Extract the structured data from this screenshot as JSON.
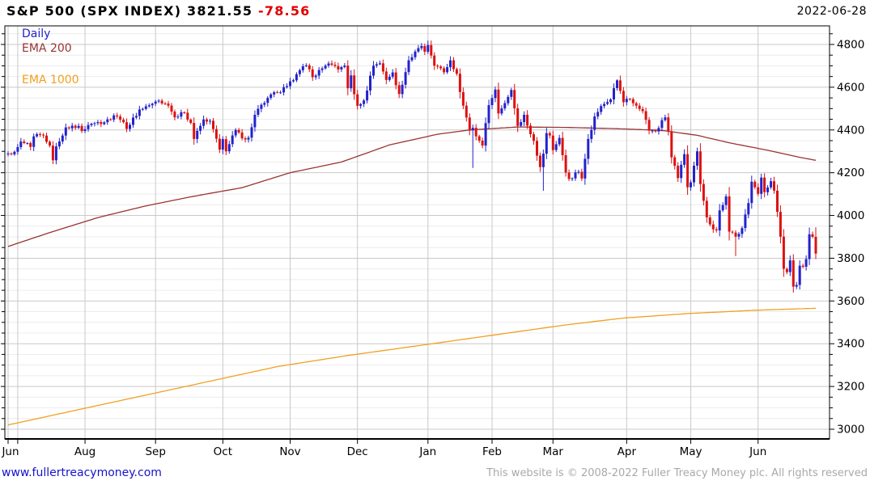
{
  "header": {
    "title_main": "S&P 500 (SPX INDEX) 3821.55",
    "title_change": "-78.56",
    "date": "2022-06-28"
  },
  "legend": [
    {
      "label": "Daily",
      "color": "#2222cc",
      "y": 34
    },
    {
      "label": "EMA 200",
      "color": "#993333",
      "y": 52
    },
    {
      "label": "EMA 1000",
      "color": "#f0a020",
      "y": 91
    }
  ],
  "footer": {
    "link": "www.fullertreacymoney.com",
    "copyright": "This website is © 2008-2022 Fuller Treacy Money plc. All rights reserved"
  },
  "chart_data": {
    "type": "candlestick",
    "title": "S&P 500 (SPX INDEX)",
    "timeframe": "Daily",
    "last_price": 3821.55,
    "change": -78.56,
    "date": "2022-06-28",
    "ylim": [
      2955,
      4885
    ],
    "y_major_ticks": [
      3000,
      3200,
      3400,
      3600,
      3800,
      4000,
      4200,
      4400,
      4600,
      4800
    ],
    "y_minor_step": 50,
    "grid": true,
    "days": 253,
    "plot": {
      "l": 6,
      "t": 32,
      "r": 1025,
      "b": 543
    },
    "months": [
      [
        "Jun",
        0
      ],
      [
        "",
        3
      ],
      [
        "Aug",
        24
      ],
      [
        "Sep",
        46
      ],
      [
        "Oct",
        67
      ],
      [
        "Nov",
        88
      ],
      [
        "Dec",
        109
      ],
      [
        "Jan",
        131
      ],
      [
        "Feb",
        151
      ],
      [
        "Mar",
        170
      ],
      [
        "Apr",
        193
      ],
      [
        "May",
        213
      ],
      [
        "Jun",
        234
      ]
    ],
    "colors": {
      "up": "#2222cc",
      "down": "#dd1111",
      "ema200": "#993333",
      "ema1000": "#f0a020",
      "grid_major": "#c9c9c9",
      "grid_minor": "#ececec",
      "axis": "#000000"
    },
    "close_keyframes": [
      [
        0,
        4290
      ],
      [
        2,
        4298
      ],
      [
        3,
        4320
      ],
      [
        4,
        4346
      ],
      [
        7,
        4321
      ],
      [
        8,
        4370
      ],
      [
        11,
        4374
      ],
      [
        13,
        4327
      ],
      [
        14,
        4258
      ],
      [
        15,
        4323
      ],
      [
        18,
        4412
      ],
      [
        22,
        4419
      ],
      [
        23,
        4395
      ],
      [
        25,
        4423
      ],
      [
        28,
        4437
      ],
      [
        30,
        4436
      ],
      [
        33,
        4468
      ],
      [
        35,
        4448
      ],
      [
        37,
        4405
      ],
      [
        41,
        4496
      ],
      [
        45,
        4523
      ],
      [
        47,
        4537
      ],
      [
        50,
        4514
      ],
      [
        52,
        4459
      ],
      [
        55,
        4481
      ],
      [
        57,
        4433
      ],
      [
        58,
        4358
      ],
      [
        61,
        4449
      ],
      [
        63,
        4443
      ],
      [
        65,
        4359
      ],
      [
        66,
        4308
      ],
      [
        67,
        4357
      ],
      [
        68,
        4300
      ],
      [
        71,
        4400
      ],
      [
        73,
        4361
      ],
      [
        75,
        4364
      ],
      [
        77,
        4471
      ],
      [
        81,
        4550
      ],
      [
        84,
        4575
      ],
      [
        87,
        4605
      ],
      [
        90,
        4661
      ],
      [
        92,
        4698
      ],
      [
        93,
        4702
      ],
      [
        95,
        4647
      ],
      [
        99,
        4701
      ],
      [
        101,
        4705
      ],
      [
        103,
        4683
      ],
      [
        105,
        4701
      ],
      [
        106,
        4595
      ],
      [
        107,
        4655
      ],
      [
        108,
        4567
      ],
      [
        109,
        4513
      ],
      [
        111,
        4538
      ],
      [
        114,
        4701
      ],
      [
        116,
        4712
      ],
      [
        118,
        4634
      ],
      [
        120,
        4669
      ],
      [
        122,
        4568
      ],
      [
        125,
        4726
      ],
      [
        129,
        4793
      ],
      [
        130,
        4766
      ],
      [
        131,
        4797
      ],
      [
        133,
        4701
      ],
      [
        136,
        4670
      ],
      [
        138,
        4726
      ],
      [
        140,
        4663
      ],
      [
        141,
        4577
      ],
      [
        144,
        4398
      ],
      [
        145,
        4410
      ],
      [
        147,
        4350
      ],
      [
        148,
        4327
      ],
      [
        149,
        4432
      ],
      [
        150,
        4516
      ],
      [
        152,
        4589
      ],
      [
        153,
        4477
      ],
      [
        154,
        4501
      ],
      [
        157,
        4587
      ],
      [
        159,
        4419
      ],
      [
        161,
        4471
      ],
      [
        163,
        4380
      ],
      [
        164,
        4349
      ],
      [
        166,
        4226
      ],
      [
        167,
        4289
      ],
      [
        168,
        4385
      ],
      [
        169,
        4374
      ],
      [
        170,
        4306
      ],
      [
        172,
        4363
      ],
      [
        174,
        4201
      ],
      [
        175,
        4171
      ],
      [
        178,
        4204
      ],
      [
        179,
        4173
      ],
      [
        181,
        4358
      ],
      [
        183,
        4463
      ],
      [
        185,
        4512
      ],
      [
        188,
        4543
      ],
      [
        190,
        4632
      ],
      [
        192,
        4530
      ],
      [
        193,
        4546
      ],
      [
        195,
        4525
      ],
      [
        198,
        4488
      ],
      [
        200,
        4397
      ],
      [
        202,
        4393
      ],
      [
        205,
        4459
      ],
      [
        206,
        4394
      ],
      [
        207,
        4272
      ],
      [
        209,
        4175
      ],
      [
        211,
        4287
      ],
      [
        212,
        4132
      ],
      [
        213,
        4155
      ],
      [
        215,
        4300
      ],
      [
        216,
        4147
      ],
      [
        218,
        3991
      ],
      [
        220,
        3935
      ],
      [
        221,
        3930
      ],
      [
        222,
        4024
      ],
      [
        224,
        4089
      ],
      [
        225,
        3924
      ],
      [
        227,
        3901
      ],
      [
        229,
        3941
      ],
      [
        231,
        4058
      ],
      [
        232,
        4158
      ],
      [
        233,
        4132
      ],
      [
        234,
        4101
      ],
      [
        235,
        4177
      ],
      [
        236,
        4109
      ],
      [
        238,
        4160
      ],
      [
        239,
        4116
      ],
      [
        240,
        4017
      ],
      [
        241,
        3901
      ],
      [
        242,
        3750
      ],
      [
        243,
        3735
      ],
      [
        244,
        3790
      ],
      [
        245,
        3667
      ],
      [
        246,
        3675
      ],
      [
        247,
        3765
      ],
      [
        248,
        3760
      ],
      [
        249,
        3796
      ],
      [
        250,
        3912
      ],
      [
        251,
        3900
      ],
      [
        252,
        3821.55
      ]
    ],
    "wick_lows": [
      [
        145,
        4222
      ],
      [
        167,
        4115
      ],
      [
        227,
        3810
      ],
      [
        245,
        3639
      ]
    ],
    "wick_highs": [
      [
        131,
        4818
      ],
      [
        190,
        4637
      ],
      [
        252,
        3945
      ]
    ],
    "ema200": {
      "label": "EMA 200",
      "keyframes": [
        [
          0,
          3855
        ],
        [
          13,
          3920
        ],
        [
          28,
          3990
        ],
        [
          43,
          4045
        ],
        [
          58,
          4090
        ],
        [
          73,
          4130
        ],
        [
          88,
          4200
        ],
        [
          104,
          4250
        ],
        [
          119,
          4330
        ],
        [
          134,
          4380
        ],
        [
          144,
          4400
        ],
        [
          159,
          4414
        ],
        [
          174,
          4412
        ],
        [
          192,
          4405
        ],
        [
          204,
          4398
        ],
        [
          215,
          4375
        ],
        [
          225,
          4340
        ],
        [
          237,
          4305
        ],
        [
          247,
          4272
        ],
        [
          252,
          4258
        ]
      ]
    },
    "ema1000": {
      "label": "EMA 1000",
      "keyframes": [
        [
          0,
          3020
        ],
        [
          23,
          3095
        ],
        [
          44,
          3163
        ],
        [
          64,
          3228
        ],
        [
          84,
          3293
        ],
        [
          106,
          3345
        ],
        [
          130,
          3395
        ],
        [
          155,
          3448
        ],
        [
          174,
          3488
        ],
        [
          192,
          3520
        ],
        [
          212,
          3541
        ],
        [
          232,
          3556
        ],
        [
          246,
          3563
        ],
        [
          252,
          3566
        ]
      ]
    }
  }
}
